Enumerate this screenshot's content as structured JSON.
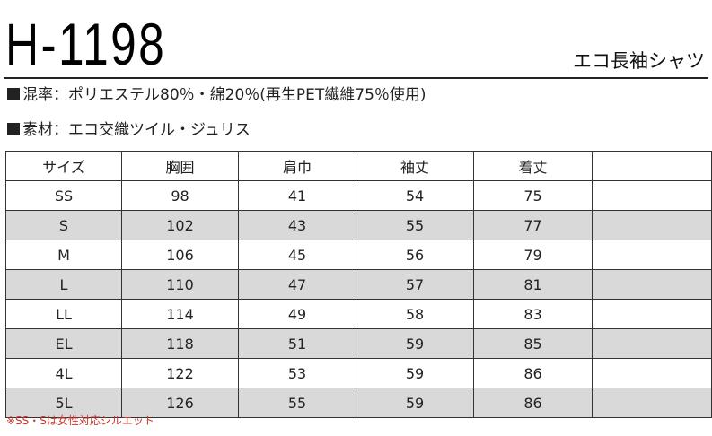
{
  "header": {
    "product_code": "H-1198",
    "product_name": "エコ長袖シャツ"
  },
  "specs": {
    "blend": "混率：ポリエステル80％・綿20％(再生PET繊維75％使用)",
    "material": "素材：エコ交織ツイル・ジュリス"
  },
  "size_table": {
    "headers": [
      "サイズ",
      "胸囲",
      "肩巾",
      "袖丈",
      "着丈",
      ""
    ],
    "rows": [
      [
        "SS",
        "98",
        "41",
        "54",
        "75",
        ""
      ],
      [
        "S",
        "102",
        "43",
        "55",
        "77",
        ""
      ],
      [
        "M",
        "106",
        "45",
        "56",
        "79",
        ""
      ],
      [
        "L",
        "110",
        "47",
        "57",
        "81",
        ""
      ],
      [
        "LL",
        "114",
        "49",
        "58",
        "83",
        ""
      ],
      [
        "EL",
        "118",
        "51",
        "59",
        "85",
        ""
      ],
      [
        "4L",
        "122",
        "53",
        "59",
        "86",
        ""
      ],
      [
        "5L",
        "126",
        "55",
        "59",
        "86",
        ""
      ]
    ]
  },
  "note": "※SS・Sは女性対応シルエット",
  "colors": {
    "shaded_row": "#d9d9d9",
    "note_text": "#d0342c"
  }
}
